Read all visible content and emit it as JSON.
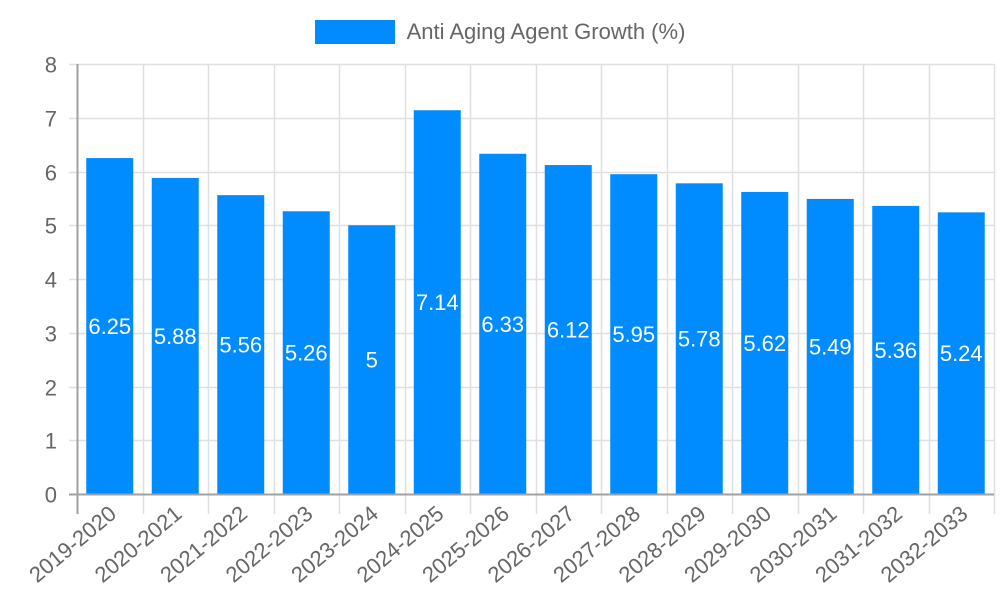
{
  "chart_data": {
    "type": "bar",
    "title": "",
    "xlabel": "",
    "ylabel": "",
    "ylim": [
      0,
      8
    ],
    "yticks": [
      0,
      1,
      2,
      3,
      4,
      5,
      6,
      7,
      8
    ],
    "grid": true,
    "legend_position": "top",
    "categories": [
      "2019-2020",
      "2020-2021",
      "2021-2022",
      "2022-2023",
      "2023-2024",
      "2024-2025",
      "2025-2026",
      "2026-2027",
      "2027-2028",
      "2028-2029",
      "2029-2030",
      "2030-2031",
      "2031-2032",
      "2032-2033"
    ],
    "series": [
      {
        "name": "Anti Aging Agent Growth (%)",
        "color": "#008cff",
        "values": [
          6.25,
          5.88,
          5.56,
          5.26,
          5,
          7.14,
          6.33,
          6.12,
          5.95,
          5.78,
          5.62,
          5.49,
          5.36,
          5.24
        ],
        "data_labels": [
          "6.25",
          "5.88",
          "5.56",
          "5.26",
          "5",
          "7.14",
          "6.33",
          "6.12",
          "5.95",
          "5.78",
          "5.62",
          "5.49",
          "5.36",
          "5.24"
        ]
      }
    ]
  },
  "legend": {
    "label": "Anti Aging Agent Growth (%)",
    "color": "#008cff"
  },
  "colors": {
    "bar": "#008cff",
    "grid": "#e0e0e0",
    "axis": "#a0a0a0",
    "tick_text": "#666666",
    "data_label": "#ffffff"
  }
}
